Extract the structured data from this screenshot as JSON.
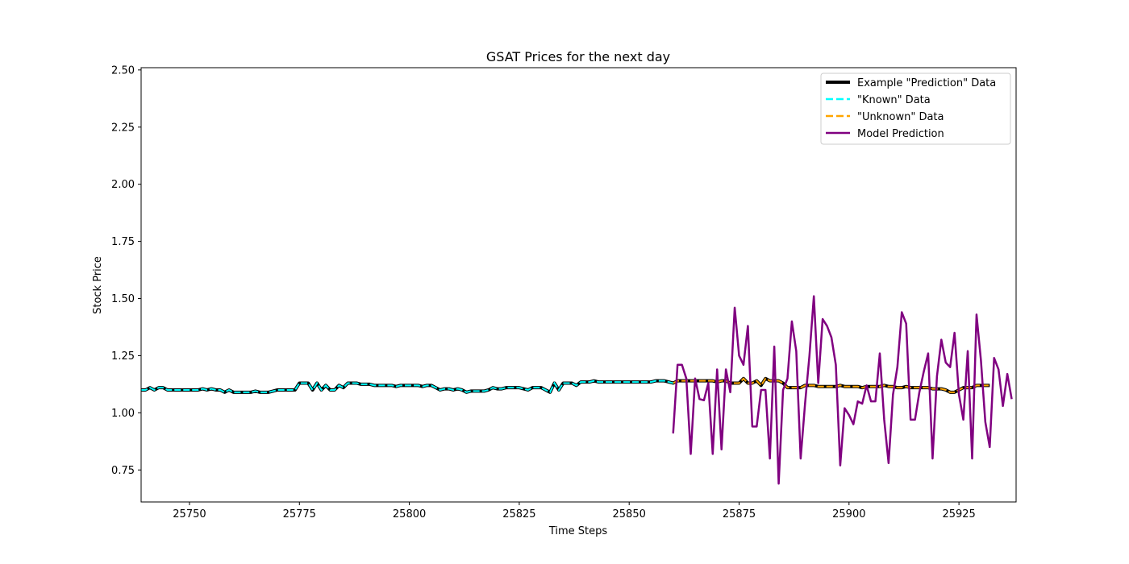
{
  "chart_data": {
    "type": "line",
    "title": "GSAT Prices for the next day",
    "xlabel": "Time Steps",
    "ylabel": "Stock Price",
    "xlim": [
      25739,
      25938
    ],
    "ylim": [
      0.61,
      2.51
    ],
    "xticks": [
      25750,
      25775,
      25800,
      25825,
      25850,
      25875,
      25900,
      25925
    ],
    "yticks": [
      0.75,
      1.0,
      1.25,
      1.5,
      1.75,
      2.0,
      2.25,
      2.5
    ],
    "grid": false,
    "legend_position": "top-right",
    "series": [
      {
        "name": "Example \"Prediction\" Data",
        "color": "#000000",
        "style": "solid",
        "x_start": 25739,
        "values": [
          1.1,
          1.1,
          1.11,
          1.1,
          1.11,
          1.11,
          1.1,
          1.1,
          1.1,
          1.1,
          1.1,
          1.1,
          1.1,
          1.1,
          1.105,
          1.1,
          1.105,
          1.1,
          1.1,
          1.09,
          1.1,
          1.09,
          1.09,
          1.09,
          1.09,
          1.09,
          1.095,
          1.09,
          1.09,
          1.09,
          1.095,
          1.1,
          1.1,
          1.1,
          1.1,
          1.1,
          1.13,
          1.13,
          1.13,
          1.1,
          1.13,
          1.1,
          1.12,
          1.1,
          1.1,
          1.12,
          1.11,
          1.13,
          1.13,
          1.13,
          1.125,
          1.125,
          1.125,
          1.12,
          1.12,
          1.12,
          1.12,
          1.12,
          1.115,
          1.12,
          1.12,
          1.12,
          1.12,
          1.12,
          1.115,
          1.12,
          1.12,
          1.11,
          1.1,
          1.105,
          1.105,
          1.1,
          1.105,
          1.1,
          1.09,
          1.095,
          1.095,
          1.095,
          1.095,
          1.1,
          1.11,
          1.105,
          1.105,
          1.11,
          1.11,
          1.11,
          1.11,
          1.105,
          1.1,
          1.11,
          1.11,
          1.11,
          1.1,
          1.09,
          1.13,
          1.1,
          1.13,
          1.13,
          1.13,
          1.12,
          1.135,
          1.135,
          1.135,
          1.14,
          1.135,
          1.135,
          1.135,
          1.135,
          1.135,
          1.135,
          1.135,
          1.135,
          1.135,
          1.135,
          1.135,
          1.135,
          1.135,
          1.14,
          1.14,
          1.14,
          1.135,
          1.13,
          1.14,
          1.14,
          1.14,
          1.14,
          1.14,
          1.14,
          1.14,
          1.14,
          1.14,
          1.135,
          1.14,
          1.14,
          1.13,
          1.13,
          1.13,
          1.15,
          1.13,
          1.13,
          1.14,
          1.12,
          1.15,
          1.14,
          1.14,
          1.14,
          1.13,
          1.11,
          1.11,
          1.11,
          1.11,
          1.12,
          1.12,
          1.12,
          1.115,
          1.115,
          1.115,
          1.115,
          1.115,
          1.12,
          1.115,
          1.115,
          1.115,
          1.115,
          1.11,
          1.115,
          1.115,
          1.115,
          1.115,
          1.12,
          1.115,
          1.115,
          1.11,
          1.11,
          1.115,
          1.11,
          1.11,
          1.11,
          1.11,
          1.11,
          1.105,
          1.105,
          1.105,
          1.1,
          1.09,
          1.09,
          1.1,
          1.11,
          1.11,
          1.11,
          1.12,
          1.12,
          1.12,
          1.12
        ]
      },
      {
        "name": "\"Known\" Data",
        "color": "#00ffff",
        "style": "dashed",
        "x_start": 25739,
        "x_end": 25860
      },
      {
        "name": "\"Unknown\" Data",
        "color": "#ffa500",
        "style": "dashed",
        "x_start": 25860,
        "x_end": 25938
      },
      {
        "name": "Model Prediction",
        "color": "#800080",
        "style": "solid",
        "x_start": 25860,
        "values": [
          0.91,
          1.21,
          1.21,
          1.15,
          0.82,
          1.15,
          1.06,
          1.055,
          1.13,
          0.82,
          1.19,
          0.84,
          1.19,
          1.09,
          1.46,
          1.25,
          1.21,
          1.38,
          0.94,
          0.94,
          1.1,
          1.1,
          0.8,
          1.29,
          0.69,
          1.1,
          1.15,
          1.4,
          1.27,
          0.8,
          1.04,
          1.25,
          1.51,
          1.13,
          1.41,
          1.38,
          1.33,
          1.21,
          0.77,
          1.02,
          0.99,
          0.95,
          1.05,
          1.04,
          1.12,
          1.05,
          1.05,
          1.26,
          0.97,
          0.78,
          1.08,
          1.2,
          1.44,
          1.39,
          0.97,
          0.97,
          1.09,
          1.18,
          1.26,
          0.8,
          1.16,
          1.32,
          1.22,
          1.2,
          1.35,
          1.08,
          0.97,
          1.27,
          0.8,
          1.43,
          1.23,
          0.96,
          0.85,
          1.24,
          1.19,
          1.03,
          1.17,
          1.06
        ]
      }
    ]
  }
}
